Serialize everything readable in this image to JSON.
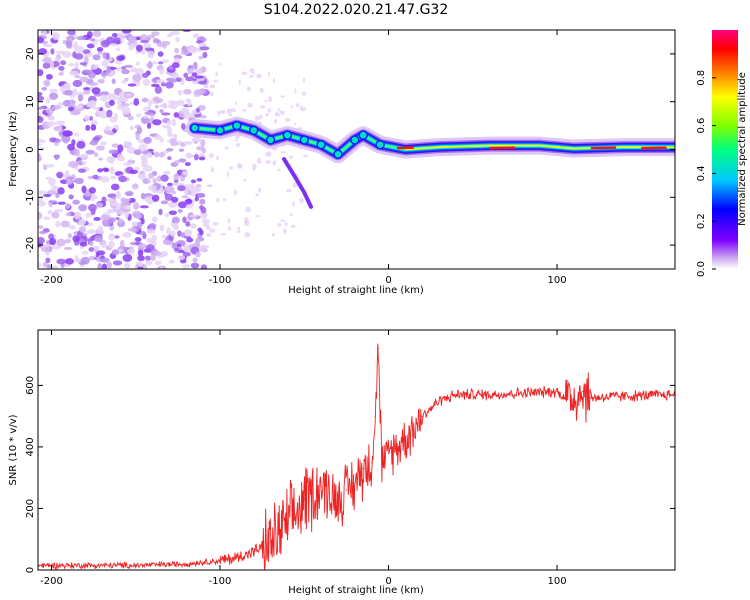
{
  "title": "S104.2022.020.21.47.G32",
  "chart_data": [
    {
      "type": "heatmap",
      "xlabel": "Height of straight line (km)",
      "ylabel": "Frequency (Hz)",
      "xlim": [
        -208,
        170
      ],
      "ylim": [
        -25,
        25
      ],
      "xticks": [
        -200,
        -100,
        0,
        100
      ],
      "yticks": [
        -20,
        -10,
        0,
        10,
        20
      ],
      "colorbar": {
        "label": "Normalized spectral amplitude",
        "range": [
          0.0,
          1.0
        ],
        "ticks": [
          "0.0",
          "0.2",
          "0.4",
          "0.6",
          "0.8"
        ],
        "colors": [
          "#ffffff",
          "#c8a0f0",
          "#8000ff",
          "#0000ff",
          "#00c8ff",
          "#00ff80",
          "#80ff00",
          "#ffff00",
          "#ff8000",
          "#ff0000",
          "#ff0080"
        ]
      },
      "ridge": [
        {
          "x": -115,
          "y": 4.5
        },
        {
          "x": -100,
          "y": 4
        },
        {
          "x": -90,
          "y": 5
        },
        {
          "x": -80,
          "y": 4
        },
        {
          "x": -70,
          "y": 2
        },
        {
          "x": -60,
          "y": 3
        },
        {
          "x": -50,
          "y": 2
        },
        {
          "x": -40,
          "y": 1
        },
        {
          "x": -30,
          "y": -1
        },
        {
          "x": -20,
          "y": 2
        },
        {
          "x": -15,
          "y": 3
        },
        {
          "x": -5,
          "y": 1
        },
        {
          "x": 10,
          "y": 0
        },
        {
          "x": 30,
          "y": 0.5
        },
        {
          "x": 60,
          "y": 0.8
        },
        {
          "x": 90,
          "y": 0.8
        },
        {
          "x": 110,
          "y": 0.2
        },
        {
          "x": 140,
          "y": 0.5
        },
        {
          "x": 170,
          "y": 0.5
        }
      ]
    },
    {
      "type": "line",
      "xlabel": "Height of straight line (km)",
      "ylabel": "SNR (10 * v/v)",
      "xlim": [
        -208,
        170
      ],
      "ylim": [
        0,
        780
      ],
      "xticks": [
        -200,
        -100,
        0,
        100
      ],
      "yticks": [
        0,
        200,
        400,
        600
      ],
      "color": "#ee2222",
      "series": [
        {
          "x": [
            -208,
            -150,
            -120,
            -100,
            -90,
            -80,
            -70,
            -60,
            -55,
            -50,
            -45,
            -40,
            -35,
            -30,
            -25,
            -20,
            -15,
            -10,
            -8,
            -6,
            -4,
            -2,
            0,
            5,
            10,
            15,
            20,
            30,
            40,
            60,
            80,
            100,
            105,
            110,
            115,
            120,
            140,
            170
          ],
          "values": [
            15,
            15,
            20,
            30,
            40,
            60,
            90,
            150,
            180,
            230,
            250,
            270,
            250,
            230,
            260,
            280,
            330,
            350,
            500,
            720,
            350,
            340,
            380,
            400,
            430,
            460,
            500,
            550,
            570,
            570,
            575,
            580,
            560,
            560,
            580,
            560,
            565,
            570
          ]
        }
      ]
    }
  ]
}
